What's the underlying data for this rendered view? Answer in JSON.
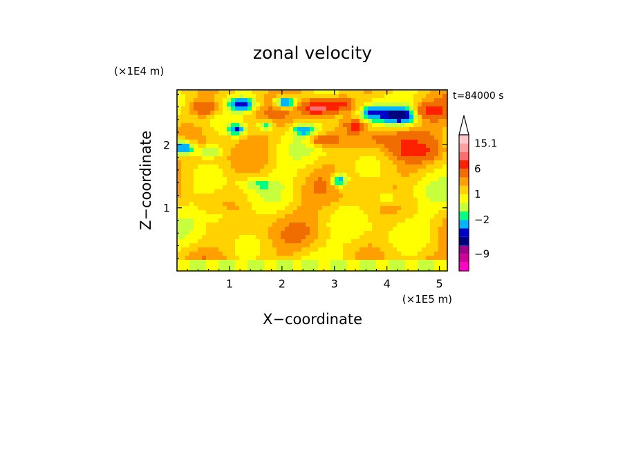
{
  "chart_data": {
    "type": "heatmap",
    "title": "zonal velocity",
    "xlabel": "X−coordinate",
    "ylabel": "Z−coordinate",
    "x_scale_label": "(×1E5 m)",
    "y_scale_label": "(×1E4 m)",
    "time_label": "t=84000 s",
    "xlim": [
      0,
      5.15
    ],
    "ylim": [
      0,
      2.87
    ],
    "x_ticks": [
      1,
      2,
      3,
      4,
      5
    ],
    "x_tick_labels": [
      "1",
      "2",
      "3",
      "4",
      "5"
    ],
    "y_ticks": [
      1,
      2
    ],
    "y_tick_labels": [
      "1",
      "2"
    ],
    "colorbar": {
      "colors": [
        "#ff00c8",
        "#d2009b",
        "#a0008c",
        "#00007d",
        "#0000c8",
        "#00b4ff",
        "#00ff82",
        "#c8ff3c",
        "#ffff00",
        "#ffd200",
        "#ffa000",
        "#f06e00",
        "#ff2000",
        "#ff6e6e",
        "#ffa0a0",
        "#ffc8c8"
      ],
      "labels": [
        {
          "text": "15.1",
          "at_boundary": 15
        },
        {
          "text": "6",
          "at_boundary": 12
        },
        {
          "text": "1",
          "at_boundary": 9
        },
        {
          "text": "−2",
          "at_boundary": 6
        },
        {
          "text": "−9",
          "at_boundary": 2
        }
      ],
      "overflow_arrow": "top"
    },
    "field_note": "zonal velocity contour field; colour index at each grid cell"
  }
}
